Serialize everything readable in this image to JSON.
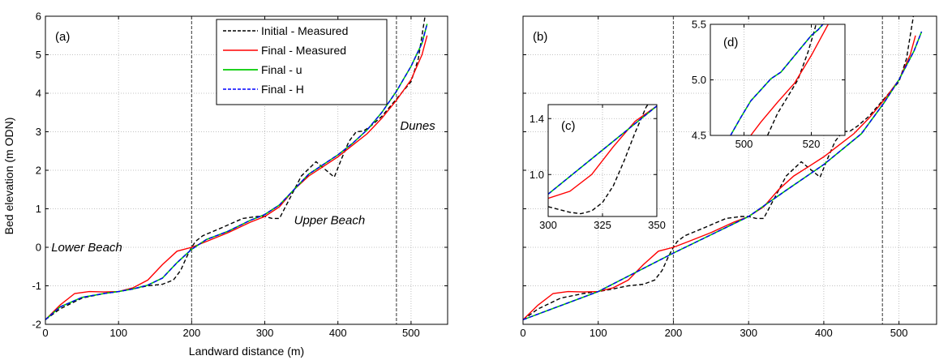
{
  "figure": {
    "ylabel": "Bed elevation (m ODN)",
    "xlabel": "Landward distance (m)"
  },
  "legend": {
    "items": [
      {
        "label": "Initial - Measured",
        "color": "#000000",
        "dash": "dashed"
      },
      {
        "label": "Final - Measured",
        "color": "#ff0000",
        "dash": "solid"
      },
      {
        "label": "Final - u",
        "color": "#00cc00",
        "dash": "solid"
      },
      {
        "label": "Final - H",
        "color": "#0000ff",
        "dash": "dashed"
      }
    ]
  },
  "colors": {
    "initial_measured": "#000000",
    "final_measured": "#ff0000",
    "final_u": "#00cc00",
    "final_h": "#0000ff",
    "grid": "#b0b0b0"
  },
  "chart_data": [
    {
      "id": "a",
      "type": "line",
      "panel_label": "(a)",
      "xlabel": "Landward distance (m)",
      "ylabel": "Bed elevation (m ODN)",
      "xlim": [
        0,
        550
      ],
      "ylim": [
        -2,
        6
      ],
      "xticks": [
        0,
        100,
        200,
        300,
        400,
        500
      ],
      "yticks": [
        -2,
        -1,
        0,
        1,
        2,
        3,
        4,
        5,
        6
      ],
      "grid": true,
      "legend_position": "top-center",
      "vlines": [
        200,
        480
      ],
      "annotations": [
        {
          "text": "Lower Beach",
          "x": 8,
          "y": -0.1
        },
        {
          "text": "Upper Beach",
          "x": 340,
          "y": 0.6
        },
        {
          "text": "Dunes",
          "x": 485,
          "y": 3.05
        }
      ],
      "series": [
        {
          "name": "Initial - Measured",
          "x": [
            0,
            20,
            50,
            80,
            100,
            120,
            140,
            160,
            175,
            185,
            192,
            197,
            200,
            205,
            215,
            240,
            270,
            290,
            300,
            310,
            320,
            335,
            350,
            370,
            385,
            395,
            405,
            415,
            425,
            435,
            445,
            460,
            480,
            500,
            510,
            515,
            520
          ],
          "y": [
            -1.88,
            -1.6,
            -1.32,
            -1.2,
            -1.15,
            -1.08,
            -1.0,
            -0.96,
            -0.85,
            -0.6,
            -0.3,
            -0.1,
            0,
            0.15,
            0.3,
            0.5,
            0.75,
            0.8,
            0.8,
            0.75,
            0.75,
            1.3,
            1.85,
            2.22,
            1.98,
            1.82,
            2.3,
            2.75,
            3.0,
            3.02,
            3.15,
            3.4,
            3.85,
            4.3,
            4.9,
            5.5,
            6.1
          ]
        },
        {
          "name": "Final - Measured",
          "x": [
            0,
            20,
            40,
            60,
            80,
            100,
            120,
            140,
            160,
            180,
            200,
            220,
            250,
            280,
            300,
            320,
            340,
            360,
            380,
            400,
            420,
            440,
            460,
            480,
            500,
            515,
            522
          ],
          "y": [
            -1.88,
            -1.5,
            -1.2,
            -1.15,
            -1.16,
            -1.15,
            -1.05,
            -0.85,
            -0.45,
            -0.1,
            0,
            0.15,
            0.38,
            0.65,
            0.8,
            1.05,
            1.5,
            1.85,
            2.1,
            2.35,
            2.65,
            2.95,
            3.35,
            3.82,
            4.35,
            5.0,
            5.5
          ]
        },
        {
          "name": "Final - u",
          "x": [
            0,
            20,
            50,
            80,
            100,
            120,
            140,
            160,
            180,
            200,
            220,
            250,
            280,
            300,
            320,
            340,
            360,
            380,
            400,
            420,
            440,
            460,
            480,
            500,
            515,
            522
          ],
          "y": [
            -1.88,
            -1.55,
            -1.3,
            -1.2,
            -1.15,
            -1.08,
            -0.98,
            -0.8,
            -0.4,
            -0.05,
            0.2,
            0.42,
            0.7,
            0.85,
            1.1,
            1.5,
            1.9,
            2.15,
            2.4,
            2.7,
            3.05,
            3.5,
            4.05,
            4.7,
            5.3,
            5.8
          ]
        },
        {
          "name": "Final - H",
          "x": [
            0,
            20,
            50,
            80,
            100,
            120,
            140,
            160,
            180,
            200,
            220,
            250,
            280,
            300,
            320,
            340,
            360,
            380,
            400,
            420,
            440,
            460,
            480,
            500,
            515,
            522
          ],
          "y": [
            -1.88,
            -1.55,
            -1.3,
            -1.2,
            -1.15,
            -1.08,
            -0.98,
            -0.8,
            -0.4,
            -0.05,
            0.2,
            0.42,
            0.7,
            0.85,
            1.1,
            1.5,
            1.9,
            2.15,
            2.4,
            2.7,
            3.05,
            3.5,
            4.05,
            4.7,
            5.3,
            5.8
          ]
        }
      ]
    },
    {
      "id": "b",
      "type": "line",
      "panel_label": "(b)",
      "xlim": [
        0,
        550
      ],
      "ylim": [
        -2,
        6
      ],
      "xticks": [
        0,
        100,
        200,
        300,
        400,
        500
      ],
      "grid": true,
      "vlines": [
        200,
        478
      ],
      "series": [
        {
          "name": "Initial - Measured",
          "x": [
            0,
            20,
            50,
            80,
            100,
            120,
            140,
            160,
            175,
            185,
            192,
            197,
            200,
            205,
            215,
            240,
            270,
            290,
            300,
            310,
            320,
            335,
            350,
            370,
            385,
            395,
            405,
            415,
            425,
            435,
            445,
            460,
            480,
            500,
            510,
            515,
            520
          ],
          "y": [
            -1.88,
            -1.6,
            -1.32,
            -1.2,
            -1.15,
            -1.08,
            -1.0,
            -0.96,
            -0.85,
            -0.6,
            -0.3,
            -0.1,
            0,
            0.15,
            0.3,
            0.5,
            0.75,
            0.8,
            0.8,
            0.75,
            0.75,
            1.3,
            1.85,
            2.22,
            1.98,
            1.82,
            2.3,
            2.75,
            3.0,
            3.02,
            3.15,
            3.4,
            3.85,
            4.3,
            4.9,
            5.5,
            6.1
          ]
        },
        {
          "name": "Final - Measured",
          "x": [
            0,
            20,
            40,
            60,
            80,
            100,
            120,
            140,
            160,
            180,
            200,
            220,
            250,
            280,
            300,
            320,
            340,
            360,
            380,
            400,
            420,
            440,
            460,
            480,
            500,
            515,
            522
          ],
          "y": [
            -1.88,
            -1.5,
            -1.2,
            -1.15,
            -1.16,
            -1.15,
            -1.05,
            -0.85,
            -0.45,
            -0.1,
            0,
            0.15,
            0.38,
            0.65,
            0.8,
            1.05,
            1.5,
            1.85,
            2.1,
            2.35,
            2.65,
            2.95,
            3.35,
            3.82,
            4.35,
            5.0,
            5.5
          ]
        },
        {
          "name": "Final - u",
          "x": [
            0,
            100,
            200,
            300,
            350,
            400,
            450,
            480,
            500,
            520,
            530
          ],
          "y": [
            -1.88,
            -1.15,
            -0.15,
            0.8,
            1.48,
            2.15,
            2.95,
            3.75,
            4.35,
            5.1,
            5.6
          ]
        },
        {
          "name": "Final - H",
          "x": [
            0,
            100,
            200,
            300,
            350,
            400,
            450,
            480,
            500,
            520,
            530
          ],
          "y": [
            -1.88,
            -1.15,
            -0.15,
            0.8,
            1.48,
            2.15,
            2.95,
            3.75,
            4.35,
            5.1,
            5.6
          ]
        }
      ]
    },
    {
      "id": "c",
      "type": "line",
      "panel_label": "(c)",
      "xlim": [
        300,
        350
      ],
      "ylim": [
        0.7,
        1.5
      ],
      "xticks": [
        300,
        325,
        350
      ],
      "yticks": [
        1.0,
        1.4
      ],
      "grid": true,
      "series": [
        {
          "name": "Initial - Measured",
          "x": [
            300,
            305,
            310,
            315,
            320,
            325,
            330,
            335,
            340,
            345,
            350
          ],
          "y": [
            0.77,
            0.75,
            0.73,
            0.72,
            0.74,
            0.8,
            0.92,
            1.1,
            1.3,
            1.48,
            1.6
          ]
        },
        {
          "name": "Final - Measured",
          "x": [
            300,
            310,
            320,
            330,
            340,
            350
          ],
          "y": [
            0.83,
            0.88,
            1.0,
            1.2,
            1.38,
            1.49
          ]
        },
        {
          "name": "Final - u",
          "x": [
            300,
            350
          ],
          "y": [
            0.86,
            1.49
          ]
        },
        {
          "name": "Final - H",
          "x": [
            300,
            350
          ],
          "y": [
            0.86,
            1.49
          ]
        }
      ]
    },
    {
      "id": "d",
      "type": "line",
      "panel_label": "(d)",
      "xlim": [
        490,
        530
      ],
      "ylim": [
        4.5,
        5.5
      ],
      "xticks": [
        500,
        520
      ],
      "yticks": [
        4.5,
        5.0,
        5.5
      ],
      "grid": true,
      "series": [
        {
          "name": "Initial - Measured",
          "x": [
            507,
            510,
            513,
            516,
            519,
            521,
            523,
            525
          ],
          "y": [
            4.5,
            4.7,
            4.85,
            5.0,
            5.25,
            5.45,
            5.7,
            5.9
          ]
        },
        {
          "name": "Final - Measured",
          "x": [
            502,
            505,
            510,
            515,
            520,
            525
          ],
          "y": [
            4.5,
            4.62,
            4.8,
            4.97,
            5.22,
            5.5
          ]
        },
        {
          "name": "Final - u",
          "x": [
            496,
            499,
            502,
            505,
            508,
            511,
            514,
            517,
            520,
            522,
            524
          ],
          "y": [
            4.5,
            4.66,
            4.81,
            4.91,
            5.01,
            5.07,
            5.18,
            5.29,
            5.4,
            5.45,
            5.52
          ]
        },
        {
          "name": "Final - H",
          "x": [
            496,
            499,
            502,
            505,
            508,
            511,
            514,
            517,
            520,
            522,
            524
          ],
          "y": [
            4.5,
            4.66,
            4.81,
            4.91,
            5.01,
            5.07,
            5.18,
            5.29,
            5.4,
            5.45,
            5.52
          ]
        }
      ]
    }
  ]
}
